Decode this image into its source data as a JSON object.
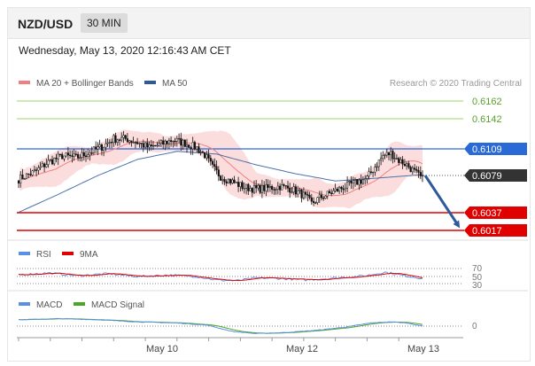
{
  "header": {
    "pair": "NZD/USD",
    "timeframe": "30 MIN",
    "datetime": "Wednesday, May 13, 2020 12:16:43 AM CET"
  },
  "main_panel": {
    "legend": [
      {
        "label": "MA 20 + Bollinger Bands",
        "color": "#f08080"
      },
      {
        "label": "MA 50",
        "color": "#2e5a9c"
      }
    ],
    "credit": "Research © 2020 Trading Central",
    "price_levels": [
      {
        "value": "0.6162",
        "color": "#7cbb3c",
        "style": "text"
      },
      {
        "value": "0.6142",
        "color": "#7cbb3c",
        "style": "text"
      },
      {
        "value": "0.6109",
        "color": "#2a6ad6",
        "style": "tag"
      },
      {
        "value": "0.6079",
        "color": "#333333",
        "style": "tag"
      },
      {
        "value": "0.6037",
        "color": "#e00000",
        "style": "tag"
      },
      {
        "value": "0.6017",
        "color": "#e00000",
        "style": "tag"
      }
    ]
  },
  "rsi_panel": {
    "legend": [
      {
        "label": "RSI",
        "color": "#5b8ee6"
      },
      {
        "label": "9MA",
        "color": "#e00000"
      }
    ],
    "levels": [
      "70",
      "50",
      "30"
    ]
  },
  "macd_panel": {
    "legend": [
      {
        "label": "MACD",
        "color": "#5b8ee6"
      },
      {
        "label": "MACD Signal",
        "color": "#4aa628"
      }
    ],
    "zero_label": "0"
  },
  "x_axis": {
    "labels": [
      "May 10",
      "May 12",
      "May 13"
    ]
  },
  "chart_data": {
    "type": "candlestick",
    "instrument": "NZD/USD",
    "interval": "30 MIN",
    "ylim": [
      0.6005,
      0.6175
    ],
    "key_levels": [
      0.6162,
      0.6142,
      0.6109,
      0.6079,
      0.6037,
      0.6017
    ],
    "last_price": 0.6079,
    "forecast": {
      "direction": "down",
      "from": 0.6079,
      "target": 0.6017
    },
    "x_tick_labels": [
      "May 10",
      "May 12",
      "May 13"
    ],
    "price_anchors": [
      [
        0,
        0.6077
      ],
      [
        8,
        0.6085
      ],
      [
        15,
        0.6096
      ],
      [
        22,
        0.6103
      ],
      [
        29,
        0.6101
      ],
      [
        36,
        0.6107
      ],
      [
        42,
        0.6113
      ],
      [
        48,
        0.6122
      ],
      [
        54,
        0.6122
      ],
      [
        60,
        0.6118
      ],
      [
        66,
        0.6112
      ],
      [
        72,
        0.6116
      ],
      [
        78,
        0.6121
      ],
      [
        84,
        0.6117
      ],
      [
        90,
        0.6112
      ],
      [
        94,
        0.6104
      ],
      [
        98,
        0.609
      ],
      [
        102,
        0.608
      ],
      [
        108,
        0.6074
      ],
      [
        114,
        0.6068
      ],
      [
        120,
        0.6066
      ],
      [
        126,
        0.6067
      ],
      [
        132,
        0.6069
      ],
      [
        138,
        0.6066
      ],
      [
        144,
        0.6059
      ],
      [
        148,
        0.605
      ],
      [
        152,
        0.6056
      ],
      [
        158,
        0.6062
      ],
      [
        164,
        0.6068
      ],
      [
        170,
        0.6073
      ],
      [
        176,
        0.6078
      ],
      [
        180,
        0.6091
      ],
      [
        184,
        0.6103
      ],
      [
        188,
        0.6106
      ],
      [
        192,
        0.6098
      ],
      [
        196,
        0.6093
      ],
      [
        200,
        0.6085
      ],
      [
        204,
        0.6077
      ]
    ],
    "ma50_anchors": [
      [
        0,
        0.604
      ],
      [
        20,
        0.606
      ],
      [
        40,
        0.6081
      ],
      [
        60,
        0.6099
      ],
      [
        80,
        0.6108
      ],
      [
        100,
        0.6105
      ],
      [
        120,
        0.6093
      ],
      [
        140,
        0.6083
      ],
      [
        160,
        0.6075
      ],
      [
        180,
        0.6078
      ],
      [
        204,
        0.6082
      ]
    ],
    "rsi_anchors": [
      [
        0,
        55
      ],
      [
        15,
        60
      ],
      [
        30,
        52
      ],
      [
        45,
        58
      ],
      [
        60,
        50
      ],
      [
        75,
        54
      ],
      [
        90,
        50
      ],
      [
        100,
        40
      ],
      [
        110,
        38
      ],
      [
        120,
        46
      ],
      [
        130,
        45
      ],
      [
        145,
        40
      ],
      [
        160,
        46
      ],
      [
        175,
        52
      ],
      [
        185,
        62
      ],
      [
        195,
        52
      ],
      [
        204,
        45
      ]
    ],
    "macd_anchors": [
      [
        0,
        0.6
      ],
      [
        20,
        0.7
      ],
      [
        40,
        0.6
      ],
      [
        60,
        0.4
      ],
      [
        80,
        0.3
      ],
      [
        95,
        0.1
      ],
      [
        108,
        -0.5
      ],
      [
        120,
        -0.7
      ],
      [
        135,
        -0.6
      ],
      [
        150,
        -0.4
      ],
      [
        165,
        -0.1
      ],
      [
        178,
        0.3
      ],
      [
        188,
        0.4
      ],
      [
        196,
        0.3
      ],
      [
        204,
        0.0
      ]
    ]
  }
}
